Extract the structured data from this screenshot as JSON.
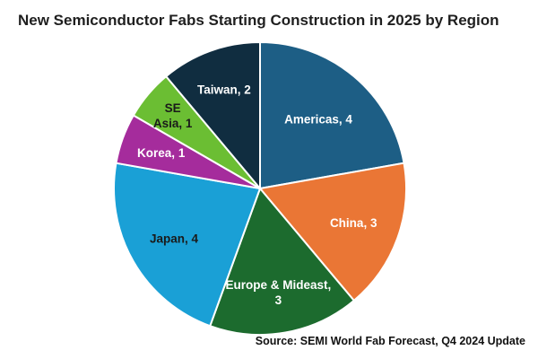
{
  "chart_data": {
    "type": "pie",
    "title": "New Semiconductor Fabs Starting Construction in 2025 by Region",
    "source": "Source: SEMI World Fab Forecast, Q4 2024 Update",
    "slices": [
      {
        "label": "Americas",
        "value": 4,
        "display": [
          "Americas, 4"
        ],
        "color": "#1d5e85",
        "text_color": "#ffffff"
      },
      {
        "label": "China",
        "value": 3,
        "display": [
          "China, 3"
        ],
        "color": "#ea7635",
        "text_color": "#ffffff"
      },
      {
        "label": "Europe & Mideast",
        "value": 3,
        "display": [
          "Europe & Mideast,",
          "3"
        ],
        "color": "#1c6b2e",
        "text_color": "#ffffff"
      },
      {
        "label": "Japan",
        "value": 4,
        "display": [
          "Japan, 4"
        ],
        "color": "#1aa0d6",
        "text_color": "#1a1a1a"
      },
      {
        "label": "Korea",
        "value": 1,
        "display": [
          "Korea, 1"
        ],
        "color": "#a52c9c",
        "text_color": "#ffffff"
      },
      {
        "label": "SE Asia",
        "value": 1,
        "display": [
          "SE",
          "Asia, 1"
        ],
        "color": "#6bbe33",
        "text_color": "#1a1a1a"
      },
      {
        "label": "Taiwan",
        "value": 2,
        "display": [
          "Taiwan, 2"
        ],
        "color": "#102d40",
        "text_color": "#ffffff"
      }
    ],
    "start": "12 o'clock",
    "direction": "clockwise",
    "legend": "none"
  }
}
